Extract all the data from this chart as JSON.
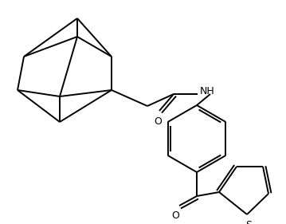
{
  "background_color": "#ffffff",
  "line_color": "#000000",
  "line_width": 1.4,
  "figsize": [
    3.59,
    2.81
  ],
  "dpi": 100,
  "xlim": [
    0,
    359
  ],
  "ylim": [
    0,
    281
  ]
}
